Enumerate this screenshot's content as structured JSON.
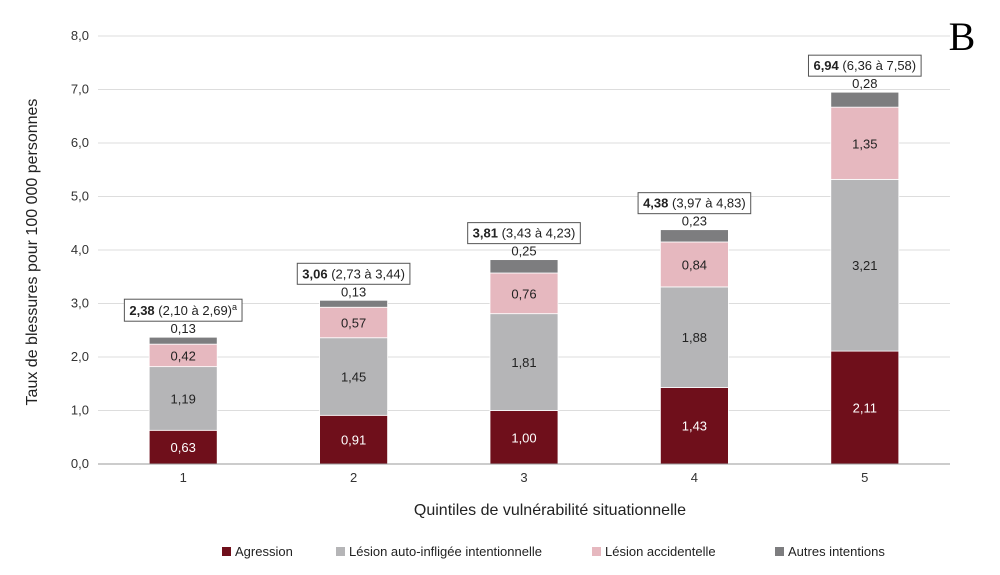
{
  "panel_letter": "B",
  "colors": {
    "agression": "#6f0f1b",
    "auto": "#b5b5b7",
    "accident": "#e6b8bf",
    "autres": "#7d7d7f",
    "grid": "#dddddd",
    "axis": "#999999"
  },
  "chart_data": {
    "type": "bar",
    "stacked": true,
    "title": "",
    "xlabel": "Quintiles de vulnérabilité situationnelle",
    "ylabel": "Taux de blessures pour 100 000 personnes",
    "ylim": [
      0,
      8
    ],
    "yticks": [
      "0,0",
      "1,0",
      "2,0",
      "3,0",
      "4,0",
      "5,0",
      "6,0",
      "7,0",
      "8,0"
    ],
    "categories": [
      "1",
      "2",
      "3",
      "4",
      "5"
    ],
    "series": [
      {
        "name": "Agression",
        "color_key": "agression",
        "label_color": "#ffffff",
        "values": [
          0.63,
          0.91,
          1.0,
          1.43,
          2.11
        ],
        "labels": [
          "0,63",
          "0,91",
          "1,00",
          "1,43",
          "2,11"
        ]
      },
      {
        "name": "Lésion auto-infligée intentionnelle",
        "color_key": "auto",
        "label_color": "#222222",
        "values": [
          1.19,
          1.45,
          1.81,
          1.88,
          3.21
        ],
        "labels": [
          "1,19",
          "1,45",
          "1,81",
          "1,88",
          "3,21"
        ]
      },
      {
        "name": "Lésion accidentelle",
        "color_key": "accident",
        "label_color": "#222222",
        "values": [
          0.42,
          0.57,
          0.76,
          0.84,
          1.35
        ],
        "labels": [
          "0,42",
          "0,57",
          "0,76",
          "0,84",
          "1,35"
        ]
      },
      {
        "name": "Autres intentions",
        "color_key": "autres",
        "label_color": "#222222",
        "values": [
          0.13,
          0.13,
          0.25,
          0.23,
          0.28
        ],
        "labels": [
          "0,13",
          "0,13",
          "0,25",
          "0,23",
          "0,28"
        ]
      }
    ],
    "totals": [
      {
        "value": "2,38",
        "ci": "(2,10 à 2,69)",
        "note": "a"
      },
      {
        "value": "3,06",
        "ci": "(2,73 à 3,44)",
        "note": ""
      },
      {
        "value": "3,81",
        "ci": "(3,43 à 4,23)",
        "note": ""
      },
      {
        "value": "4,38",
        "ci": "(3,97 à 4,83)",
        "note": ""
      },
      {
        "value": "6,94",
        "ci": "(6,36 à 7,58)",
        "note": ""
      }
    ],
    "legend_position": "bottom"
  }
}
